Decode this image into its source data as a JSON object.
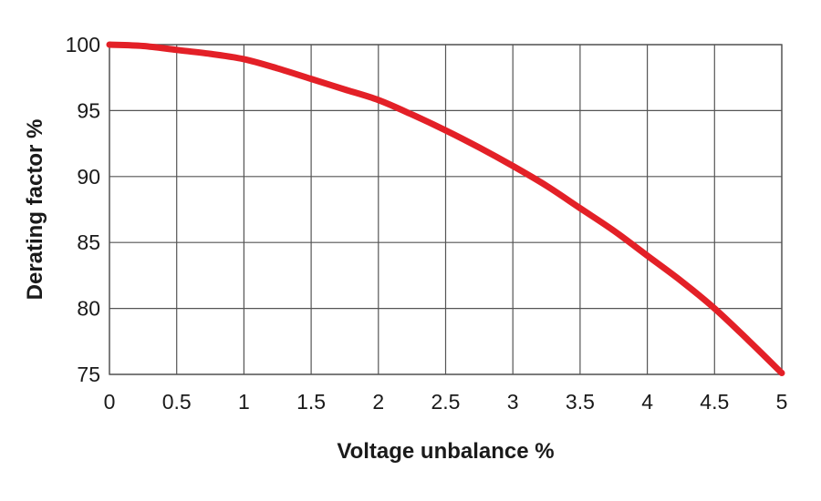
{
  "chart_data": {
    "type": "line",
    "title": "",
    "xlabel": "Voltage unbalance %",
    "ylabel": "Derating factor %",
    "xlim": [
      0,
      5
    ],
    "ylim": [
      75,
      100
    ],
    "xticks": [
      "0",
      "0.5",
      "1",
      "1.5",
      "2",
      "2.5",
      "3",
      "3.5",
      "4",
      "4.5",
      "5"
    ],
    "yticks": [
      "100",
      "95",
      "90",
      "85",
      "80",
      "75"
    ],
    "grid": true,
    "series": [
      {
        "color": "#e32027",
        "x": [
          0,
          0.25,
          0.5,
          0.75,
          1,
          1.25,
          1.5,
          1.75,
          2,
          2.25,
          2.5,
          2.75,
          3,
          3.25,
          3.5,
          3.75,
          4,
          4.25,
          4.5,
          4.75,
          5
        ],
        "y": [
          100,
          99.9,
          99.6,
          99.3,
          98.9,
          98.2,
          97.4,
          96.6,
          95.8,
          94.7,
          93.5,
          92.2,
          90.8,
          89.3,
          87.6,
          85.9,
          84.0,
          82.1,
          80.0,
          77.6,
          75.1
        ]
      }
    ]
  }
}
